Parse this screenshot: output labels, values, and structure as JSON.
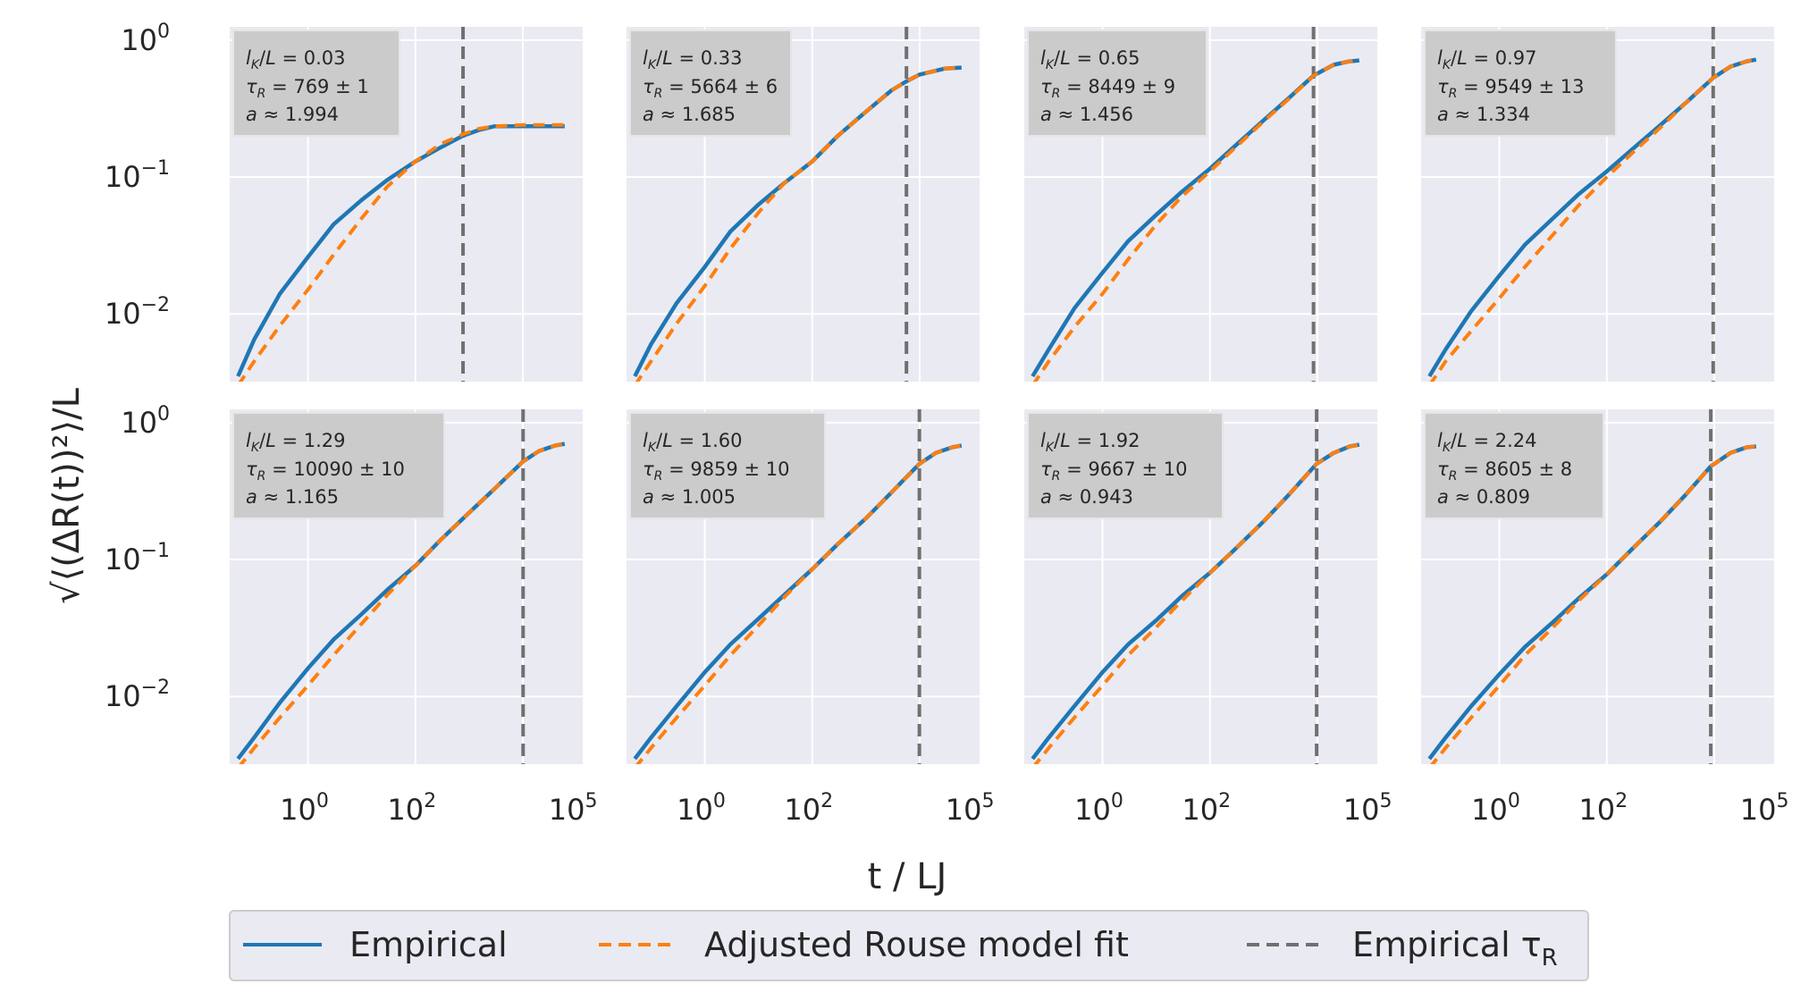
{
  "chart_data": [
    {
      "type": "line",
      "panel": 1,
      "annotation": {
        "lk_over_L": "0.03",
        "tau_R": "769 ± 1",
        "a": "1.994"
      },
      "tau_R_empirical_line_x": 769,
      "series": [
        {
          "name": "Empirical",
          "x": [
            0.05,
            0.1,
            0.3,
            1,
            3,
            10,
            30,
            100,
            300,
            769,
            1500,
            3000,
            10000,
            30000,
            60000
          ],
          "y": [
            0.0035,
            0.0065,
            0.014,
            0.026,
            0.045,
            0.068,
            0.095,
            0.13,
            0.165,
            0.2,
            0.22,
            0.235,
            0.235,
            0.235,
            0.235
          ]
        },
        {
          "name": "Adjusted Rouse model fit",
          "x": [
            0.05,
            0.1,
            0.3,
            1,
            3,
            10,
            30,
            100,
            300,
            769,
            1500,
            3000,
            10000,
            30000,
            60000
          ],
          "y": [
            0.003,
            0.0045,
            0.0082,
            0.015,
            0.027,
            0.05,
            0.085,
            0.13,
            0.175,
            0.205,
            0.225,
            0.235,
            0.24,
            0.24,
            0.24
          ]
        }
      ]
    },
    {
      "type": "line",
      "panel": 2,
      "annotation": {
        "lk_over_L": "0.33",
        "tau_R": "5664 ± 6",
        "a": "1.685"
      },
      "tau_R_empirical_line_x": 5664,
      "series": [
        {
          "name": "Empirical",
          "x": [
            0.05,
            0.1,
            0.3,
            1,
            3,
            10,
            30,
            100,
            300,
            1000,
            3000,
            5664,
            10000,
            30000,
            60000
          ],
          "y": [
            0.0035,
            0.006,
            0.012,
            0.022,
            0.04,
            0.063,
            0.09,
            0.13,
            0.2,
            0.3,
            0.43,
            0.5,
            0.56,
            0.62,
            0.63
          ]
        },
        {
          "name": "Adjusted Rouse model fit",
          "x": [
            0.05,
            0.1,
            0.3,
            1,
            3,
            10,
            30,
            100,
            300,
            1000,
            3000,
            5664,
            10000,
            30000,
            60000
          ],
          "y": [
            0.003,
            0.0045,
            0.0085,
            0.016,
            0.03,
            0.055,
            0.09,
            0.13,
            0.2,
            0.3,
            0.43,
            0.5,
            0.56,
            0.62,
            0.63
          ]
        }
      ]
    },
    {
      "type": "line",
      "panel": 3,
      "annotation": {
        "lk_over_L": "0.65",
        "tau_R": "8449 ± 9",
        "a": "1.456"
      },
      "tau_R_empirical_line_x": 8449,
      "series": [
        {
          "name": "Empirical",
          "x": [
            0.05,
            0.1,
            0.3,
            1,
            3,
            10,
            30,
            100,
            300,
            1000,
            3000,
            8449,
            20000,
            40000,
            60000
          ],
          "y": [
            0.0035,
            0.0055,
            0.011,
            0.02,
            0.034,
            0.053,
            0.078,
            0.115,
            0.17,
            0.26,
            0.38,
            0.55,
            0.66,
            0.7,
            0.71
          ]
        },
        {
          "name": "Adjusted Rouse model fit",
          "x": [
            0.05,
            0.1,
            0.3,
            1,
            3,
            10,
            30,
            100,
            300,
            1000,
            3000,
            8449,
            20000,
            40000,
            60000
          ],
          "y": [
            0.003,
            0.0045,
            0.008,
            0.014,
            0.025,
            0.045,
            0.072,
            0.11,
            0.165,
            0.255,
            0.375,
            0.55,
            0.66,
            0.7,
            0.71
          ]
        }
      ]
    },
    {
      "type": "line",
      "panel": 4,
      "annotation": {
        "lk_over_L": "0.97",
        "tau_R": "9549 ± 13",
        "a": "1.334"
      },
      "tau_R_empirical_line_x": 9549,
      "series": [
        {
          "name": "Empirical",
          "x": [
            0.05,
            0.1,
            0.3,
            1,
            3,
            10,
            30,
            100,
            300,
            1000,
            3000,
            9549,
            20000,
            40000,
            60000
          ],
          "y": [
            0.0035,
            0.0055,
            0.0105,
            0.019,
            0.032,
            0.05,
            0.075,
            0.11,
            0.16,
            0.24,
            0.35,
            0.53,
            0.64,
            0.7,
            0.72
          ]
        },
        {
          "name": "Adjusted Rouse model fit",
          "x": [
            0.05,
            0.1,
            0.3,
            1,
            3,
            10,
            30,
            100,
            300,
            1000,
            3000,
            9549,
            20000,
            40000,
            60000
          ],
          "y": [
            0.003,
            0.0045,
            0.0075,
            0.013,
            0.022,
            0.038,
            0.062,
            0.1,
            0.15,
            0.23,
            0.35,
            0.53,
            0.64,
            0.7,
            0.72
          ]
        }
      ]
    },
    {
      "type": "line",
      "panel": 5,
      "annotation": {
        "lk_over_L": "1.29",
        "tau_R": "10090 ± 10",
        "a": "1.165"
      },
      "tau_R_empirical_line_x": 10090,
      "series": [
        {
          "name": "Empirical",
          "x": [
            0.05,
            0.1,
            0.3,
            1,
            3,
            10,
            30,
            100,
            300,
            1000,
            3000,
            10090,
            20000,
            40000,
            60000
          ],
          "y": [
            0.0035,
            0.005,
            0.009,
            0.016,
            0.026,
            0.04,
            0.06,
            0.09,
            0.14,
            0.22,
            0.33,
            0.52,
            0.62,
            0.68,
            0.7
          ]
        },
        {
          "name": "Adjusted Rouse model fit",
          "x": [
            0.05,
            0.1,
            0.3,
            1,
            3,
            10,
            30,
            100,
            300,
            1000,
            3000,
            10090,
            20000,
            40000,
            60000
          ],
          "y": [
            0.003,
            0.0042,
            0.007,
            0.012,
            0.02,
            0.034,
            0.055,
            0.09,
            0.14,
            0.22,
            0.33,
            0.52,
            0.62,
            0.68,
            0.7
          ]
        }
      ]
    },
    {
      "type": "line",
      "panel": 6,
      "annotation": {
        "lk_over_L": "1.60",
        "tau_R": "9859 ± 10",
        "a": "1.005"
      },
      "tau_R_empirical_line_x": 9859,
      "series": [
        {
          "name": "Empirical",
          "x": [
            0.05,
            0.1,
            0.3,
            1,
            3,
            10,
            30,
            100,
            300,
            1000,
            3000,
            9859,
            20000,
            40000,
            60000
          ],
          "y": [
            0.0035,
            0.005,
            0.0085,
            0.015,
            0.024,
            0.037,
            0.055,
            0.085,
            0.13,
            0.2,
            0.31,
            0.5,
            0.6,
            0.66,
            0.68
          ]
        },
        {
          "name": "Adjusted Rouse model fit",
          "x": [
            0.05,
            0.1,
            0.3,
            1,
            3,
            10,
            30,
            100,
            300,
            1000,
            3000,
            9859,
            20000,
            40000,
            60000
          ],
          "y": [
            0.003,
            0.0042,
            0.007,
            0.012,
            0.02,
            0.033,
            0.053,
            0.085,
            0.13,
            0.2,
            0.31,
            0.5,
            0.6,
            0.66,
            0.68
          ]
        }
      ]
    },
    {
      "type": "line",
      "panel": 7,
      "annotation": {
        "lk_over_L": "1.92",
        "tau_R": "9667 ± 10",
        "a": "0.943"
      },
      "tau_R_empirical_line_x": 9667,
      "series": [
        {
          "name": "Empirical",
          "x": [
            0.05,
            0.1,
            0.3,
            1,
            3,
            10,
            30,
            100,
            300,
            1000,
            3000,
            9667,
            20000,
            40000,
            60000
          ],
          "y": [
            0.0035,
            0.005,
            0.0085,
            0.015,
            0.024,
            0.036,
            0.054,
            0.08,
            0.12,
            0.19,
            0.3,
            0.5,
            0.6,
            0.67,
            0.69
          ]
        },
        {
          "name": "Adjusted Rouse model fit",
          "x": [
            0.05,
            0.1,
            0.3,
            1,
            3,
            10,
            30,
            100,
            300,
            1000,
            3000,
            9667,
            20000,
            40000,
            60000
          ],
          "y": [
            0.003,
            0.0042,
            0.007,
            0.012,
            0.02,
            0.032,
            0.05,
            0.08,
            0.12,
            0.19,
            0.3,
            0.5,
            0.6,
            0.67,
            0.69
          ]
        }
      ]
    },
    {
      "type": "line",
      "panel": 8,
      "annotation": {
        "lk_over_L": "2.24",
        "tau_R": "8605 ± 8",
        "a": "0.809"
      },
      "tau_R_empirical_line_x": 8605,
      "series": [
        {
          "name": "Empirical",
          "x": [
            0.05,
            0.1,
            0.3,
            1,
            3,
            10,
            30,
            100,
            300,
            1000,
            3000,
            8605,
            20000,
            40000,
            60000
          ],
          "y": [
            0.0035,
            0.005,
            0.0085,
            0.0145,
            0.023,
            0.035,
            0.052,
            0.078,
            0.12,
            0.19,
            0.3,
            0.48,
            0.6,
            0.66,
            0.67
          ]
        },
        {
          "name": "Adjusted Rouse model fit",
          "x": [
            0.05,
            0.1,
            0.3,
            1,
            3,
            10,
            30,
            100,
            300,
            1000,
            3000,
            8605,
            20000,
            40000,
            60000
          ],
          "y": [
            0.003,
            0.0042,
            0.007,
            0.012,
            0.02,
            0.032,
            0.05,
            0.078,
            0.12,
            0.19,
            0.3,
            0.48,
            0.6,
            0.66,
            0.67
          ]
        }
      ]
    }
  ],
  "axes": {
    "x_scale": "log",
    "y_scale": "log",
    "xlim": [
      0.035,
      130000
    ],
    "ylim": [
      0.0032,
      1.25
    ],
    "x_ticks": [
      {
        "base": "10",
        "exp": "0",
        "value": 1
      },
      {
        "base": "10",
        "exp": "2",
        "value": 100
      },
      {
        "base": "10",
        "exp": "5",
        "value": 100000
      }
    ],
    "x_grid": [
      1,
      100,
      10000
    ],
    "y_ticks": [
      {
        "base": "10",
        "exp": "0",
        "value": 1
      },
      {
        "base": "10",
        "exp": "−1",
        "value": 0.1
      },
      {
        "base": "10",
        "exp": "−2",
        "value": 0.01
      }
    ],
    "xlabel": "t / LJ",
    "ylabel": "√⟨(ΔR(t))²⟩/L",
    "grid": true,
    "sharex": true,
    "sharey": true
  },
  "legend": {
    "position": "bottom-center",
    "entries": [
      {
        "label": "Empirical",
        "color": "#1f77b4",
        "style": "solid"
      },
      {
        "label": "Adjusted Rouse model fit",
        "color": "#ff7f0e",
        "style": "dashed"
      },
      {
        "label": "Empirical τ",
        "sub": "R",
        "color": "#707070",
        "style": "dashed"
      }
    ]
  },
  "colors": {
    "empirical": "#1f77b4",
    "fit": "#ff7f0e",
    "tau_line": "#707070",
    "plot_bg": "#eaeaf2",
    "grid": "#ffffff",
    "annotation_box": "#cbcbcb"
  }
}
